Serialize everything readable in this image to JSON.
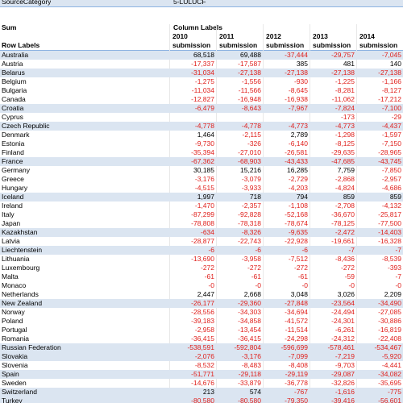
{
  "filter": {
    "label": "SourceCategory",
    "value": "5-LULUCF"
  },
  "pivot": {
    "sum_label": "Sum",
    "column_labels": "Column Labels",
    "row_labels": "Row Labels",
    "columns": [
      [
        "2010",
        "submission"
      ],
      [
        "2011",
        "submission"
      ],
      [
        "2012",
        "submission"
      ],
      [
        "2013",
        "submission"
      ],
      [
        "2014",
        "submission"
      ]
    ],
    "highlighted": [
      0,
      2,
      6,
      8,
      12,
      16,
      20,
      22,
      28,
      33,
      34,
      36,
      38,
      39
    ],
    "rows": [
      [
        "Australia",
        "68,518",
        "69,488",
        "-37,444",
        "-29,757",
        "-7,045"
      ],
      [
        "Austria",
        "-17,337",
        "-17,587",
        "385",
        "481",
        "140"
      ],
      [
        "Belarus",
        "-31,034",
        "-27,138",
        "-27,138",
        "-27,138",
        "-27,138"
      ],
      [
        "Belgium",
        "-1,275",
        "-1,556",
        "-930",
        "-1,225",
        "-1,166"
      ],
      [
        "Bulgaria",
        "-11,034",
        "-11,566",
        "-8,645",
        "-8,281",
        "-8,127"
      ],
      [
        "Canada",
        "-12,827",
        "-16,948",
        "-16,938",
        "-11,062",
        "-17,212"
      ],
      [
        "Croatia",
        "-6,479",
        "-8,643",
        "-7,967",
        "-7,824",
        "-7,100"
      ],
      [
        "Cyprus",
        null,
        null,
        null,
        "-173",
        "-29"
      ],
      [
        "Czech Republic",
        "-4,778",
        "-4,778",
        "-4,773",
        "-4,773",
        "-4,437"
      ],
      [
        "Denmark",
        "1,464",
        "-2,115",
        "2,789",
        "-1,298",
        "-1,597"
      ],
      [
        "Estonia",
        "-9,730",
        "-326",
        "-6,140",
        "-8,125",
        "-7,150"
      ],
      [
        "Finland",
        "-35,394",
        "-27,010",
        "-26,581",
        "-29,635",
        "-28,965"
      ],
      [
        "France",
        "-67,362",
        "-68,903",
        "-43,433",
        "-47,685",
        "-43,745"
      ],
      [
        "Germany",
        "30,185",
        "15,216",
        "16,285",
        "7,759",
        "-7,850"
      ],
      [
        "Greece",
        "-3,176",
        "-3,079",
        "-2,729",
        "-2,868",
        "-2,957"
      ],
      [
        "Hungary",
        "-4,515",
        "-3,933",
        "-4,203",
        "-4,824",
        "-4,686"
      ],
      [
        "Iceland",
        "1,997",
        "718",
        "794",
        "859",
        "859"
      ],
      [
        "Ireland",
        "-1,470",
        "-2,357",
        "-1,108",
        "-2,708",
        "-4,132"
      ],
      [
        "Italy",
        "-87,299",
        "-92,828",
        "-52,168",
        "-36,670",
        "-25,817"
      ],
      [
        "Japan",
        "-78,808",
        "-78,318",
        "-78,674",
        "-78,125",
        "-77,500"
      ],
      [
        "Kazakhstan",
        "-634",
        "-8,326",
        "-9,635",
        "-2,472",
        "-14,403"
      ],
      [
        "Latvia",
        "-28,877",
        "-22,743",
        "-22,928",
        "-19,661",
        "-16,328"
      ],
      [
        "Liechtenstein",
        "-6",
        "-6",
        "-6",
        "-7",
        "-7"
      ],
      [
        "Lithuania",
        "-13,690",
        "-3,958",
        "-7,512",
        "-8,436",
        "-8,539"
      ],
      [
        "Luxembourg",
        "-272",
        "-272",
        "-272",
        "-272",
        "-393"
      ],
      [
        "Malta",
        "-61",
        "-61",
        "-61",
        "-59",
        "-7"
      ],
      [
        "Monaco",
        "-0",
        "-0",
        "-0",
        "-0",
        "-0"
      ],
      [
        "Netherlands",
        "2,447",
        "2,668",
        "3,048",
        "3,026",
        "2,209"
      ],
      [
        "New Zealand",
        "-26,177",
        "-29,360",
        "-27,848",
        "-23,564",
        "-34,490"
      ],
      [
        "Norway",
        "-28,556",
        "-34,303",
        "-34,694",
        "-24,494",
        "-27,085"
      ],
      [
        "Poland",
        "-39,183",
        "-34,858",
        "-41,572",
        "-24,301",
        "-30,886"
      ],
      [
        "Portugal",
        "-2,958",
        "-13,454",
        "-11,514",
        "-6,261",
        "-16,819"
      ],
      [
        "Romania",
        "-36,415",
        "-36,415",
        "-24,298",
        "-24,312",
        "-22,408"
      ],
      [
        "Russian Federation",
        "-538,591",
        "-592,804",
        "-596,699",
        "-578,461",
        "-534,467"
      ],
      [
        "Slovakia",
        "-2,076",
        "-3,176",
        "-7,099",
        "-7,219",
        "-5,920"
      ],
      [
        "Slovenia",
        "-8,532",
        "-8,483",
        "-8,408",
        "-9,703",
        "-4,441"
      ],
      [
        "Spain",
        "-51,771",
        "-29,118",
        "-29,119",
        "-29,087",
        "-34,082"
      ],
      [
        "Sweden",
        "-14,676",
        "-33,879",
        "-36,778",
        "-32,826",
        "-35,695"
      ],
      [
        "Switzerland",
        "213",
        "574",
        "-767",
        "-1,616",
        "-775"
      ],
      [
        "Turkey",
        "-80,580",
        "-80,580",
        "-79,350",
        "-39,416",
        "-56,601"
      ]
    ]
  }
}
